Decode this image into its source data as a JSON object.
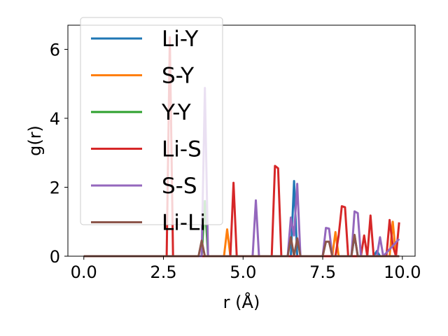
{
  "chart_data": {
    "type": "line",
    "xlabel": "r (Å)",
    "ylabel": "g(r)",
    "xlim": [
      -0.5,
      10.4
    ],
    "ylim": [
      0,
      6.7
    ],
    "xticks": [
      0.0,
      2.5,
      5.0,
      7.5,
      10.0
    ],
    "xtick_labels": [
      "0.0",
      "2.5",
      "5.0",
      "7.5",
      "10.0"
    ],
    "yticks": [
      0,
      2,
      4,
      6
    ],
    "ytick_labels": [
      "0",
      "2",
      "4",
      "6"
    ],
    "grid": false,
    "legend_position": "upper-left",
    "series": [
      {
        "name": "Li-Y",
        "color": "#1f77b4",
        "x": [
          0,
          6.5,
          6.6,
          6.7,
          8.4,
          8.5,
          8.6,
          9.1,
          9.2,
          9.3,
          9.9
        ],
        "y": [
          0,
          0,
          2.18,
          0,
          0,
          0.6,
          0,
          0,
          0.15,
          0,
          0
        ]
      },
      {
        "name": "S-Y",
        "color": "#ff7f0e",
        "x": [
          0,
          4.4,
          4.5,
          4.6,
          7.8,
          7.9,
          8.0,
          9.6,
          9.7,
          9.8,
          9.9
        ],
        "y": [
          0,
          0,
          0.78,
          0,
          0,
          0.7,
          0,
          0,
          1.0,
          0,
          0
        ]
      },
      {
        "name": "Y-Y",
        "color": "#2ca02c",
        "x": [
          0,
          3.7,
          3.8,
          3.9,
          9.9
        ],
        "y": [
          0,
          0,
          1.6,
          0,
          0
        ]
      },
      {
        "name": "Li-S",
        "color": "#d62728",
        "x": [
          0,
          2.6,
          2.7,
          2.8,
          4.6,
          4.7,
          4.8,
          5.9,
          6.0,
          6.1,
          6.2,
          7.9,
          8.0,
          8.1,
          8.2,
          8.3,
          8.7,
          8.8,
          8.9,
          9.0,
          9.1,
          9.5,
          9.6,
          9.7,
          9.8,
          9.9
        ],
        "y": [
          0,
          0,
          6.35,
          0,
          0,
          2.13,
          0,
          0,
          2.62,
          2.55,
          0,
          0,
          0.6,
          1.45,
          1.42,
          0,
          0,
          0.6,
          0,
          1.18,
          0,
          0,
          1.05,
          0.3,
          0,
          0.98
        ]
      },
      {
        "name": "S-S",
        "color": "#9467bd",
        "x": [
          0,
          3.7,
          3.8,
          3.9,
          5.3,
          5.4,
          5.5,
          6.4,
          6.5,
          6.6,
          6.7,
          6.8,
          7.5,
          7.6,
          7.7,
          7.8,
          8.4,
          8.5,
          8.6,
          8.7,
          9.2,
          9.3,
          9.4,
          9.9
        ],
        "y": [
          0,
          0,
          4.88,
          0,
          0,
          1.62,
          0,
          0,
          1.12,
          0.6,
          2.1,
          0,
          0,
          0.82,
          0.8,
          0,
          0,
          1.3,
          1.25,
          0,
          0,
          0.55,
          0,
          0.5
        ]
      },
      {
        "name": "Li-Li",
        "color": "#8c564b",
        "x": [
          0,
          3.6,
          3.7,
          3.8,
          6.4,
          6.5,
          6.6,
          6.7,
          6.8,
          7.5,
          7.6,
          7.7,
          7.8,
          8.4,
          8.5,
          8.6,
          9.9
        ],
        "y": [
          0,
          0,
          0.45,
          0,
          0,
          0.55,
          0,
          0.52,
          0,
          0,
          0.42,
          0.42,
          0,
          0,
          0.62,
          0,
          0
        ]
      }
    ]
  }
}
